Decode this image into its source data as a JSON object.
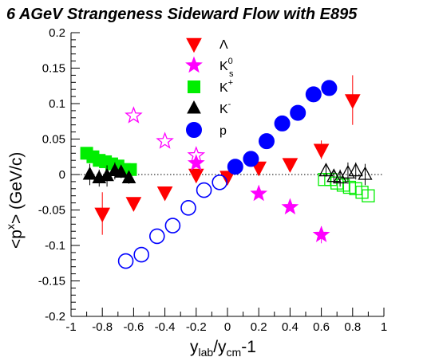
{
  "chart_data": {
    "type": "scatter",
    "title": "6 AGeV Strangeness Sideward Flow with E895",
    "xlabel": {
      "main": "y",
      "sub1": "lab",
      "mid": "/y",
      "sub2": "cm",
      "tail": "-1"
    },
    "ylabel": {
      "pre": "<p",
      "sup": "x",
      "post": "> (GeV/c)"
    },
    "xlim": [
      -1,
      1
    ],
    "ylim": [
      -0.2,
      0.2
    ],
    "x_ticks": [
      "-1",
      "-0.8",
      "-0.6",
      "-0.4",
      "-0.2",
      "0",
      "0.2",
      "0.4",
      "0.6",
      "0.8",
      "1"
    ],
    "y_ticks": [
      "-0.2",
      "-0.15",
      "-0.1",
      "-0.05",
      "0",
      "0.05",
      "0.1",
      "0.15",
      "0.2"
    ],
    "zero_line": true,
    "legend_position": "top-center",
    "series": [
      {
        "key": "lambda",
        "name": "Λ",
        "color": "#ff0000",
        "marker": "triangle-down",
        "points": [
          {
            "x": -0.8,
            "y": -0.055,
            "err": 0.03
          },
          {
            "x": -0.6,
            "y": -0.04,
            "err": 0.0
          },
          {
            "x": -0.4,
            "y": -0.025,
            "err": 0.0
          },
          {
            "x": -0.2,
            "y": 0.0,
            "err": 0.0
          },
          {
            "x": 0.0,
            "y": -0.003,
            "err": 0.0
          },
          {
            "x": 0.2,
            "y": 0.01,
            "err": 0.0
          },
          {
            "x": 0.4,
            "y": 0.015,
            "err": 0.0
          },
          {
            "x": 0.6,
            "y": 0.035,
            "err": 0.013
          },
          {
            "x": 0.8,
            "y": 0.105,
            "err": 0.035
          }
        ]
      },
      {
        "key": "ks0",
        "name": "K",
        "name_sub": "s",
        "name_sup": "0",
        "color": "#ff00ff",
        "marker": "star",
        "points": [
          {
            "x": -0.6,
            "y": 0.083,
            "err": 0.0,
            "open": true
          },
          {
            "x": -0.4,
            "y": 0.047,
            "err": 0.0,
            "open": true
          },
          {
            "x": -0.2,
            "y": 0.027,
            "err": 0.0,
            "open": true
          },
          {
            "x": -0.2,
            "y": 0.016,
            "err": 0.0,
            "open": false
          },
          {
            "x": 0.2,
            "y": -0.027,
            "err": 0.0,
            "open": false
          },
          {
            "x": 0.4,
            "y": -0.046,
            "err": 0.0,
            "open": false
          },
          {
            "x": 0.6,
            "y": -0.085,
            "err": 0.012,
            "open": false
          }
        ]
      },
      {
        "key": "kplus",
        "name": "K",
        "name_sup": "+",
        "color": "#00ee00",
        "marker": "square",
        "points": [
          {
            "x": -0.9,
            "y": 0.03,
            "open": false
          },
          {
            "x": -0.86,
            "y": 0.025,
            "open": false
          },
          {
            "x": -0.82,
            "y": 0.02,
            "open": false
          },
          {
            "x": -0.78,
            "y": 0.018,
            "open": false
          },
          {
            "x": -0.74,
            "y": 0.015,
            "open": false
          },
          {
            "x": -0.7,
            "y": 0.012,
            "open": false
          },
          {
            "x": -0.66,
            "y": 0.007,
            "open": false
          },
          {
            "x": -0.62,
            "y": 0.007,
            "open": false
          },
          {
            "x": 0.62,
            "y": -0.007,
            "open": true
          },
          {
            "x": 0.66,
            "y": -0.007,
            "open": true
          },
          {
            "x": 0.7,
            "y": -0.012,
            "open": true
          },
          {
            "x": 0.74,
            "y": -0.015,
            "open": true
          },
          {
            "x": 0.78,
            "y": -0.018,
            "open": true
          },
          {
            "x": 0.82,
            "y": -0.02,
            "open": true
          },
          {
            "x": 0.86,
            "y": -0.025,
            "open": true
          },
          {
            "x": 0.9,
            "y": -0.03,
            "open": true
          }
        ]
      },
      {
        "key": "kminus",
        "name": "K",
        "name_sup": "-",
        "color": "#000000",
        "marker": "triangle-up",
        "points": [
          {
            "x": -0.88,
            "y": 0.0,
            "err": 0.015,
            "open": false
          },
          {
            "x": -0.82,
            "y": -0.005,
            "err": 0.012,
            "open": false
          },
          {
            "x": -0.77,
            "y": -0.002,
            "err": 0.015,
            "open": false
          },
          {
            "x": -0.72,
            "y": 0.005,
            "err": 0.012,
            "open": false
          },
          {
            "x": -0.68,
            "y": 0.003,
            "err": 0.008,
            "open": false
          },
          {
            "x": -0.63,
            "y": -0.005,
            "err": 0.008,
            "open": false
          },
          {
            "x": 0.63,
            "y": 0.005,
            "err": 0.008,
            "open": true
          },
          {
            "x": 0.68,
            "y": -0.003,
            "err": 0.008,
            "open": true
          },
          {
            "x": 0.72,
            "y": -0.005,
            "err": 0.012,
            "open": true
          },
          {
            "x": 0.77,
            "y": 0.002,
            "err": 0.015,
            "open": true
          },
          {
            "x": 0.82,
            "y": 0.005,
            "err": 0.012,
            "open": true
          },
          {
            "x": 0.88,
            "y": 0.0,
            "err": 0.015,
            "open": true
          }
        ]
      },
      {
        "key": "proton",
        "name": "p",
        "color": "#0000ff",
        "marker": "circle",
        "points": [
          {
            "x": -0.65,
            "y": -0.122,
            "open": true
          },
          {
            "x": -0.55,
            "y": -0.113,
            "open": true
          },
          {
            "x": -0.45,
            "y": -0.087,
            "open": true
          },
          {
            "x": -0.35,
            "y": -0.072,
            "open": true
          },
          {
            "x": -0.25,
            "y": -0.047,
            "open": true
          },
          {
            "x": -0.15,
            "y": -0.022,
            "open": true
          },
          {
            "x": -0.05,
            "y": -0.011,
            "open": true
          },
          {
            "x": 0.05,
            "y": 0.011,
            "open": false
          },
          {
            "x": 0.15,
            "y": 0.022,
            "open": false
          },
          {
            "x": 0.25,
            "y": 0.047,
            "open": false
          },
          {
            "x": 0.35,
            "y": 0.072,
            "open": false
          },
          {
            "x": 0.45,
            "y": 0.087,
            "open": false
          },
          {
            "x": 0.55,
            "y": 0.113,
            "open": false
          },
          {
            "x": 0.65,
            "y": 0.122,
            "open": false
          }
        ]
      }
    ]
  }
}
